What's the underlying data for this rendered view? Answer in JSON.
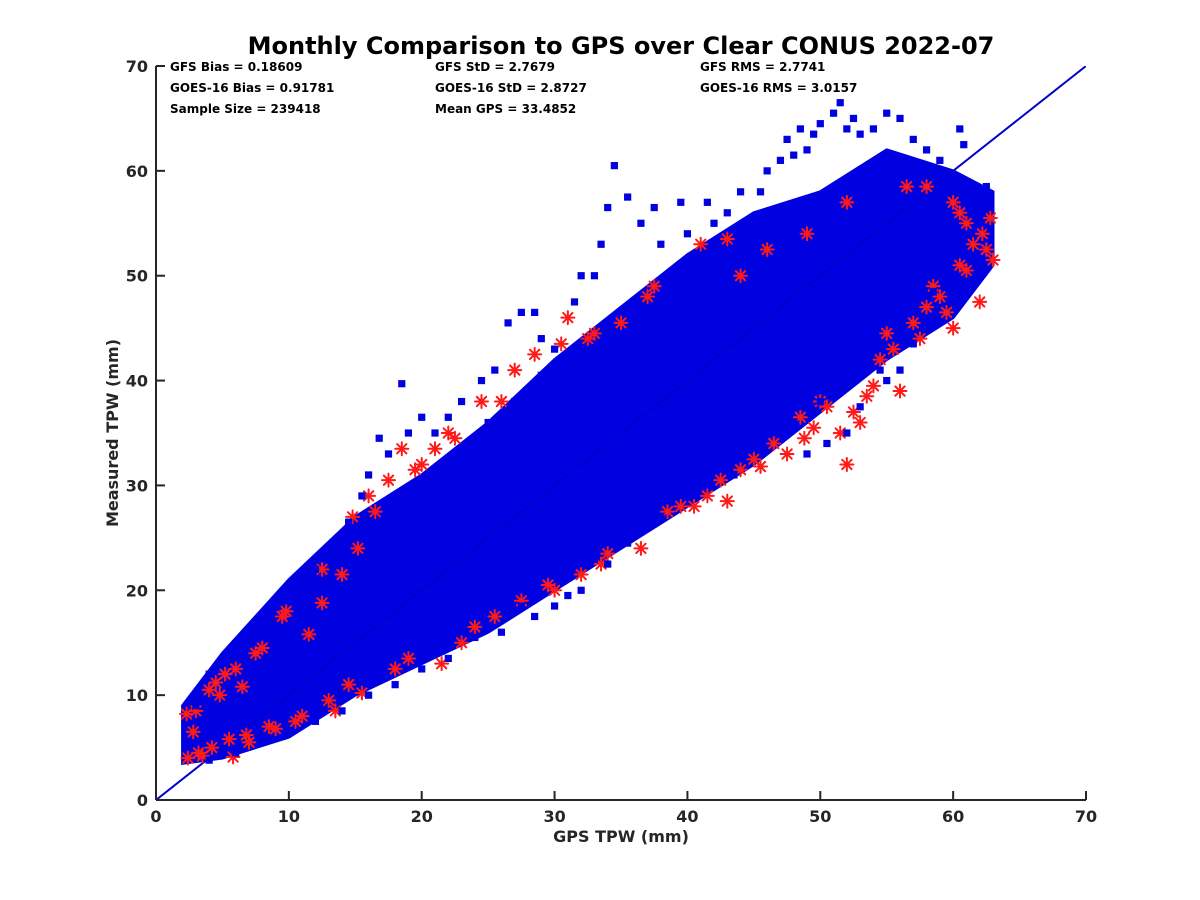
{
  "chart_data": {
    "type": "scatter",
    "title": "Monthly Comparison to GPS over Clear CONUS 2022-07",
    "xlabel": "GPS TPW (mm)",
    "ylabel": "Measured TPW (mm)",
    "xlim": [
      0,
      70
    ],
    "ylim": [
      0,
      70
    ],
    "xticks": [
      "0",
      "10",
      "20",
      "30",
      "40",
      "50",
      "60",
      "70"
    ],
    "yticks": [
      "0",
      "10",
      "20",
      "30",
      "40",
      "50",
      "60",
      "70"
    ],
    "grid": false,
    "legend": "none",
    "annotations": [
      [
        "GFS Bias = 0.18609",
        "GFS StD = 2.7679",
        "GFS RMS = 2.7741"
      ],
      [
        "GOES-16 Bias = 0.91781",
        "GOES-16 StD = 2.8727",
        "GOES-16 RMS = 3.0157"
      ],
      [
        "Sample Size = 239418",
        "Mean GPS = 33.4852",
        ""
      ]
    ],
    "reference_line": {
      "x": [
        0,
        70
      ],
      "y": [
        0,
        70
      ],
      "color": "#0000cc"
    },
    "series": [
      {
        "marker": "asterisk",
        "color": "#ff1a1a",
        "points": [
          [
            2.3,
            8.2
          ],
          [
            2.4,
            4.0
          ],
          [
            2.8,
            6.5
          ],
          [
            3.0,
            8.5
          ],
          [
            3.5,
            4.2
          ],
          [
            4.0,
            10.5
          ],
          [
            4.5,
            11.2
          ],
          [
            5.2,
            12.0
          ],
          [
            5.8,
            4.1
          ],
          [
            6.5,
            10.8
          ],
          [
            7.0,
            5.5
          ],
          [
            8.0,
            14.5
          ],
          [
            9.0,
            6.8
          ],
          [
            9.8,
            18.0
          ],
          [
            10.5,
            7.5
          ],
          [
            11.5,
            15.8
          ],
          [
            12.5,
            18.8
          ],
          [
            13.0,
            9.5
          ],
          [
            13.5,
            8.5
          ],
          [
            14.0,
            21.5
          ],
          [
            14.8,
            27.0
          ],
          [
            15.2,
            24.0
          ],
          [
            15.5,
            10.2
          ],
          [
            16.0,
            29.0
          ],
          [
            17.5,
            30.5
          ],
          [
            18.5,
            33.5
          ],
          [
            19.0,
            13.5
          ],
          [
            20.0,
            32.0
          ],
          [
            21.0,
            33.5
          ],
          [
            21.5,
            13.0
          ],
          [
            22.5,
            34.5
          ],
          [
            23.0,
            15.0
          ],
          [
            25.5,
            17.5
          ],
          [
            26.0,
            38.0
          ],
          [
            28.5,
            42.5
          ],
          [
            29.5,
            20.5
          ],
          [
            31.0,
            46.0
          ],
          [
            32.0,
            21.5
          ],
          [
            32.5,
            44.0
          ],
          [
            34.0,
            23.5
          ],
          [
            36.5,
            24.0
          ],
          [
            37.0,
            48.0
          ],
          [
            39.5,
            28.0
          ],
          [
            40.5,
            28.0
          ],
          [
            41.5,
            29.0
          ],
          [
            42.5,
            30.5
          ],
          [
            43.0,
            28.5
          ],
          [
            45.0,
            32.5
          ],
          [
            45.5,
            31.8
          ],
          [
            47.5,
            33.0
          ],
          [
            48.5,
            36.5
          ],
          [
            48.8,
            34.5
          ],
          [
            49.5,
            35.5
          ],
          [
            50.5,
            37.5
          ],
          [
            51.5,
            35.0
          ],
          [
            52.0,
            32.0
          ],
          [
            52.5,
            37.0
          ],
          [
            53.0,
            36.0
          ],
          [
            53.5,
            38.5
          ],
          [
            54.0,
            39.5
          ],
          [
            54.5,
            42.0
          ],
          [
            55.0,
            44.5
          ],
          [
            56.0,
            39.0
          ],
          [
            57.0,
            45.5
          ],
          [
            58.0,
            47.0
          ],
          [
            58.5,
            49.0
          ],
          [
            59.5,
            46.5
          ],
          [
            60.0,
            45.0
          ],
          [
            60.5,
            51.0
          ],
          [
            61.0,
            50.5
          ],
          [
            62.0,
            47.5
          ],
          [
            62.5,
            52.5
          ],
          [
            62.8,
            55.5
          ],
          [
            63.0,
            51.5
          ],
          [
            60.0,
            57.0
          ],
          [
            58.0,
            58.5
          ],
          [
            56.5,
            58.5
          ],
          [
            52.0,
            57.0
          ],
          [
            49.0,
            54.0
          ],
          [
            46.0,
            52.5
          ],
          [
            44.0,
            50.0
          ],
          [
            43.0,
            53.5
          ],
          [
            41.0,
            53.0
          ],
          [
            37.5,
            49.0
          ],
          [
            35.0,
            45.5
          ],
          [
            33.0,
            44.5
          ],
          [
            30.5,
            43.5
          ],
          [
            27.0,
            41.0
          ],
          [
            24.5,
            38.0
          ],
          [
            22.0,
            35.0
          ],
          [
            19.5,
            31.5
          ],
          [
            16.5,
            27.5
          ],
          [
            12.5,
            22.0
          ],
          [
            9.5,
            17.5
          ],
          [
            7.5,
            14.0
          ],
          [
            6.0,
            12.5
          ],
          [
            4.8,
            10.0
          ],
          [
            3.2,
            4.5
          ],
          [
            4.2,
            5.0
          ],
          [
            5.5,
            5.8
          ],
          [
            6.8,
            6.2
          ],
          [
            8.5,
            7.0
          ],
          [
            11.0,
            8.0
          ],
          [
            14.5,
            11.0
          ],
          [
            18.0,
            12.5
          ],
          [
            24.0,
            16.5
          ],
          [
            27.5,
            19.0
          ],
          [
            30.0,
            20.0
          ],
          [
            33.5,
            22.5
          ],
          [
            38.5,
            27.5
          ],
          [
            44.0,
            31.5
          ],
          [
            46.5,
            34.0
          ],
          [
            50.0,
            38.0
          ],
          [
            55.5,
            43.0
          ],
          [
            57.5,
            44.0
          ],
          [
            59.0,
            48.0
          ],
          [
            61.5,
            53.0
          ],
          [
            62.2,
            54.0
          ],
          [
            61.0,
            55.0
          ],
          [
            60.5,
            56.0
          ]
        ]
      },
      {
        "marker": "square",
        "color": "#0000e0",
        "band": {
          "x": [
            2,
            5,
            10,
            15,
            20,
            25,
            30,
            35,
            40,
            45,
            50,
            55,
            60,
            63
          ],
          "upper": [
            9,
            14,
            21,
            27,
            31,
            36,
            42,
            47,
            52,
            56,
            58,
            62,
            60,
            58
          ],
          "lower": [
            3.5,
            4,
            6,
            10,
            13,
            16,
            20,
            24,
            28,
            32,
            37,
            42,
            46,
            51
          ]
        },
        "points": [
          [
            18.5,
            39.7
          ],
          [
            17.5,
            33.0
          ],
          [
            16.0,
            31.0
          ],
          [
            15.5,
            29.0
          ],
          [
            16.8,
            34.5
          ],
          [
            19.0,
            35.0
          ],
          [
            20.0,
            36.5
          ],
          [
            21.0,
            35.0
          ],
          [
            22.0,
            36.5
          ],
          [
            23.0,
            38.0
          ],
          [
            24.5,
            40.0
          ],
          [
            25.5,
            41.0
          ],
          [
            26.5,
            45.5
          ],
          [
            27.5,
            46.5
          ],
          [
            28.5,
            46.5
          ],
          [
            29.0,
            44.0
          ],
          [
            30.0,
            43.0
          ],
          [
            31.5,
            47.5
          ],
          [
            32.0,
            50.0
          ],
          [
            33.0,
            50.0
          ],
          [
            33.5,
            53.0
          ],
          [
            34.0,
            56.5
          ],
          [
            34.5,
            60.5
          ],
          [
            35.5,
            57.5
          ],
          [
            36.5,
            55.0
          ],
          [
            37.5,
            56.5
          ],
          [
            38.0,
            53.0
          ],
          [
            39.5,
            57.0
          ],
          [
            40.0,
            54.0
          ],
          [
            41.5,
            57.0
          ],
          [
            42.0,
            55.0
          ],
          [
            43.0,
            56.0
          ],
          [
            44.0,
            58.0
          ],
          [
            45.5,
            58.0
          ],
          [
            46.0,
            60.0
          ],
          [
            47.0,
            61.0
          ],
          [
            47.5,
            63.0
          ],
          [
            48.0,
            61.5
          ],
          [
            48.5,
            64.0
          ],
          [
            49.0,
            62.0
          ],
          [
            49.5,
            63.5
          ],
          [
            50.0,
            64.5
          ],
          [
            51.0,
            65.5
          ],
          [
            51.5,
            66.5
          ],
          [
            52.0,
            64.0
          ],
          [
            52.5,
            65.0
          ],
          [
            53.0,
            63.5
          ],
          [
            54.0,
            64.0
          ],
          [
            55.0,
            65.5
          ],
          [
            56.0,
            65.0
          ],
          [
            57.0,
            63.0
          ],
          [
            58.0,
            62.0
          ],
          [
            58.5,
            60.0
          ],
          [
            59.0,
            61.0
          ],
          [
            60.5,
            64.0
          ],
          [
            60.8,
            62.5
          ],
          [
            62.5,
            58.5
          ],
          [
            62.2,
            56.0
          ],
          [
            62.8,
            54.5
          ],
          [
            61.0,
            52.0
          ],
          [
            59.5,
            50.0
          ],
          [
            58.5,
            48.5
          ],
          [
            57.0,
            43.5
          ],
          [
            56.0,
            41.0
          ],
          [
            55.0,
            40.0
          ],
          [
            53.0,
            37.5
          ],
          [
            52.0,
            35.0
          ],
          [
            50.5,
            34.0
          ],
          [
            49.0,
            33.0
          ],
          [
            47.5,
            36.5
          ],
          [
            46.0,
            35.0
          ],
          [
            44.0,
            33.5
          ],
          [
            42.0,
            31.5
          ],
          [
            41.0,
            32.5
          ],
          [
            39.0,
            30.5
          ],
          [
            37.0,
            28.5
          ],
          [
            35.5,
            24.5
          ],
          [
            34.0,
            22.5
          ],
          [
            32.0,
            20.0
          ],
          [
            31.0,
            19.5
          ],
          [
            30.0,
            18.5
          ],
          [
            28.5,
            17.5
          ],
          [
            27.5,
            18.5
          ],
          [
            26.0,
            16.0
          ],
          [
            24.0,
            15.5
          ],
          [
            22.0,
            13.5
          ],
          [
            20.0,
            12.5
          ],
          [
            18.0,
            11.0
          ],
          [
            16.0,
            10.0
          ],
          [
            14.0,
            8.5
          ],
          [
            12.0,
            7.5
          ],
          [
            10.0,
            6.5
          ],
          [
            8.0,
            5.5
          ],
          [
            6.0,
            4.5
          ],
          [
            4.0,
            3.8
          ],
          [
            3.0,
            9.0
          ],
          [
            4.0,
            12.0
          ],
          [
            5.5,
            13.5
          ],
          [
            7.0,
            15.5
          ],
          [
            8.5,
            17.5
          ],
          [
            10.0,
            19.0
          ],
          [
            12.0,
            22.0
          ],
          [
            13.5,
            24.5
          ],
          [
            14.5,
            26.5
          ],
          [
            10.5,
            16.5
          ],
          [
            11.5,
            18.5
          ],
          [
            13.0,
            20.0
          ],
          [
            19.5,
            26.5
          ],
          [
            22.0,
            32.5
          ],
          [
            25.0,
            36.0
          ],
          [
            27.0,
            38.0
          ],
          [
            29.0,
            40.5
          ],
          [
            36.0,
            46.0
          ],
          [
            38.5,
            49.0
          ],
          [
            40.5,
            51.5
          ],
          [
            45.0,
            55.5
          ],
          [
            33.0,
            23.0
          ],
          [
            36.0,
            26.0
          ],
          [
            38.0,
            27.0
          ],
          [
            43.5,
            31.0
          ],
          [
            45.5,
            34.0
          ],
          [
            48.0,
            36.0
          ],
          [
            50.0,
            38.0
          ],
          [
            54.5,
            41.0
          ],
          [
            60.0,
            54.0
          ],
          [
            61.0,
            58.0
          ]
        ]
      }
    ]
  }
}
